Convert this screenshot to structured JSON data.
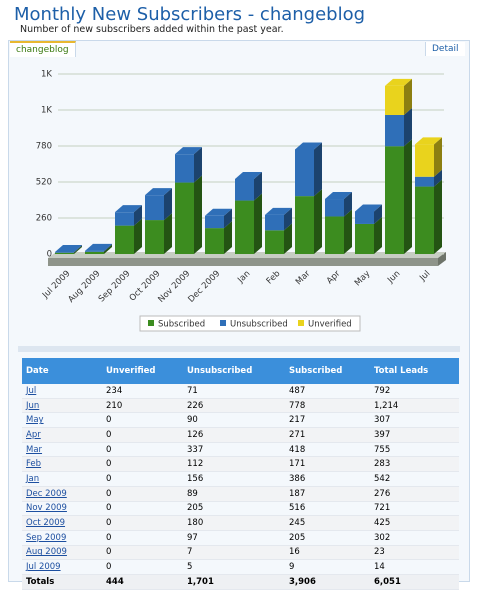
{
  "header": {
    "title": "Monthly New Subscribers - changeblog",
    "subtitle": "Number of new subscribers added within the past year."
  },
  "tabs": {
    "active": "changeblog",
    "detail": "Detail"
  },
  "chart_data": {
    "type": "bar",
    "stacked": true,
    "categories": [
      "Jul 2009",
      "Aug 2009",
      "Sep 2009",
      "Oct 2009",
      "Nov 2009",
      "Dec 2009",
      "Jan",
      "Feb",
      "Mar",
      "Apr",
      "May",
      "Jun",
      "Jul"
    ],
    "series": [
      {
        "name": "Subscribed",
        "color": "#3c8c1f",
        "values": [
          9,
          16,
          205,
          245,
          516,
          187,
          386,
          171,
          418,
          271,
          217,
          778,
          487
        ]
      },
      {
        "name": "Unsubscribed",
        "color": "#2f6fb8",
        "values": [
          5,
          7,
          97,
          180,
          205,
          89,
          156,
          112,
          337,
          126,
          90,
          226,
          71
        ]
      },
      {
        "name": "Unverified",
        "color": "#e9d31d",
        "values": [
          0,
          0,
          0,
          0,
          0,
          0,
          0,
          0,
          0,
          0,
          0,
          210,
          234
        ]
      }
    ],
    "ylim": [
      0,
      1300
    ],
    "yticks": [
      0,
      260,
      520,
      780,
      {
        "value": 1040,
        "label": "1K"
      },
      {
        "value": 1300,
        "label": "1K"
      }
    ],
    "grid": true,
    "legend": "bottom"
  },
  "table": {
    "columns": [
      "Date",
      "Unverified",
      "Unsubscribed",
      "Subscribed",
      "Total Leads"
    ],
    "rows": [
      [
        "Jul",
        "234",
        "71",
        "487",
        "792"
      ],
      [
        "Jun",
        "210",
        "226",
        "778",
        "1,214"
      ],
      [
        "May",
        "0",
        "90",
        "217",
        "307"
      ],
      [
        "Apr",
        "0",
        "126",
        "271",
        "397"
      ],
      [
        "Mar",
        "0",
        "337",
        "418",
        "755"
      ],
      [
        "Feb",
        "0",
        "112",
        "171",
        "283"
      ],
      [
        "Jan",
        "0",
        "156",
        "386",
        "542"
      ],
      [
        "Dec 2009",
        "0",
        "89",
        "187",
        "276"
      ],
      [
        "Nov 2009",
        "0",
        "205",
        "516",
        "721"
      ],
      [
        "Oct 2009",
        "0",
        "180",
        "245",
        "425"
      ],
      [
        "Sep 2009",
        "0",
        "97",
        "205",
        "302"
      ],
      [
        "Aug 2009",
        "0",
        "7",
        "16",
        "23"
      ],
      [
        "Jul 2009",
        "0",
        "5",
        "9",
        "14"
      ]
    ],
    "totals": [
      "Totals",
      "444",
      "1,701",
      "3,906",
      "6,051"
    ]
  }
}
